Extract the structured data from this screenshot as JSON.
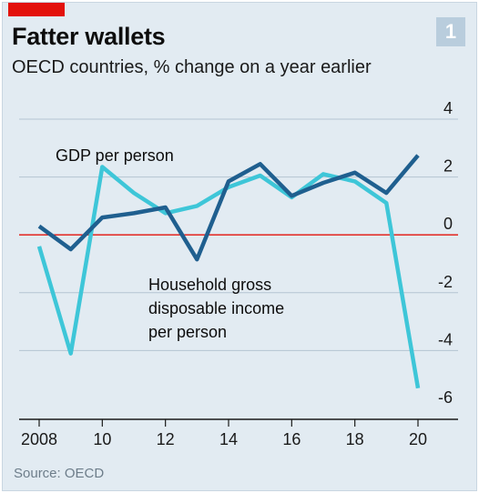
{
  "header": {
    "title": "Fatter wallets",
    "subtitle": "OECD countries, % change on a year earlier",
    "badge": "1"
  },
  "footer": {
    "source": "Source: OECD"
  },
  "colors": {
    "background": "#e2ebf2",
    "gdp": "#1f5f8f",
    "income": "#3ec6d8",
    "zero_line": "#e3120b",
    "grid": "#b4c4d2",
    "brand_red": "#e3120b"
  },
  "chart_data": {
    "type": "line",
    "title": "Fatter wallets",
    "subtitle": "OECD countries, % change on a year earlier",
    "xlabel": "",
    "ylabel": "",
    "x": [
      2008,
      2009,
      2010,
      2011,
      2012,
      2013,
      2014,
      2015,
      2016,
      2017,
      2018,
      2019,
      2020
    ],
    "x_tick_values": [
      2008,
      2010,
      2012,
      2014,
      2016,
      2018,
      2020
    ],
    "x_tick_labels": [
      "2008",
      "10",
      "12",
      "14",
      "16",
      "18",
      "20"
    ],
    "xlim": [
      2008,
      2021
    ],
    "ylim": [
      -6,
      4
    ],
    "y_ticks": [
      4,
      2,
      0,
      -2,
      -4,
      -6
    ],
    "y_tick_labels": [
      "4",
      "2",
      "0",
      "-2",
      "-4",
      "-6"
    ],
    "y_axis_side": "right",
    "grid": true,
    "series": [
      {
        "name": "GDP per person",
        "color": "#1f5f8f",
        "values": [
          0.3,
          -0.5,
          0.6,
          0.75,
          0.95,
          -0.85,
          1.85,
          2.45,
          1.35,
          1.8,
          2.15,
          1.45,
          2.75
        ]
      },
      {
        "name": "Household gross disposable income per person",
        "color": "#3ec6d8",
        "values": [
          -0.4,
          -4.1,
          2.35,
          1.45,
          0.75,
          1.0,
          1.65,
          2.05,
          1.3,
          2.1,
          1.85,
          1.1,
          -5.3
        ]
      }
    ],
    "annotations": {
      "gdp_label": "GDP per person",
      "income_label_lines": [
        "Household gross",
        "disposable income",
        "per person"
      ]
    }
  }
}
